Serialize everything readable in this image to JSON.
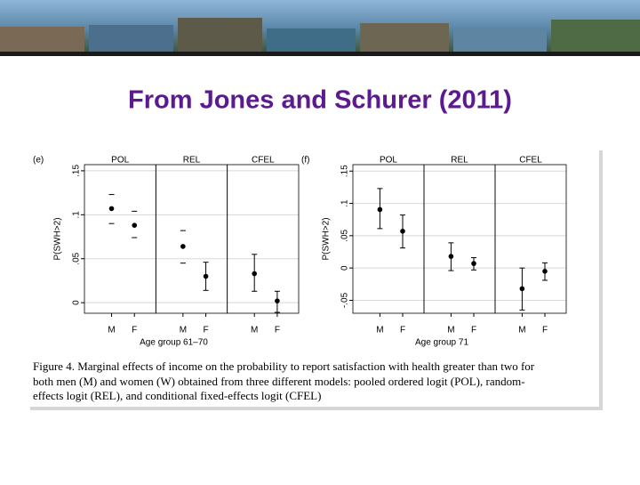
{
  "slide": {
    "title": "From Jones and Schurer (2011)",
    "caption": [
      "Figure 4. Marginal effects of income on the probability to report satisfaction with health greater than two for",
      "both men (M) and women (W) obtained from three different models: pooled ordered logit (POL), random-",
      "effects logit (REL), and conditional fixed-effects logit (CFEL)"
    ]
  },
  "chart_data": [
    {
      "type": "dot",
      "panel_label": "(e)",
      "y_label": "P(SWH>2)",
      "x_label": "Age group 61–70",
      "panels": [
        "POL",
        "REL",
        "CFEL"
      ],
      "categories": [
        "M",
        "F",
        "M",
        "F",
        "M",
        "F"
      ],
      "values": [
        0.107,
        0.088,
        0.064,
        0.03,
        0.033,
        0.002
      ],
      "lower": [
        0.09,
        0.074,
        0.045,
        0.014,
        0.013,
        -0.011
      ],
      "upper": [
        0.123,
        0.104,
        0.082,
        0.046,
        0.055,
        0.013
      ],
      "ci_style": [
        "dash",
        "dash",
        "dash",
        "bar",
        "bar",
        "bar"
      ],
      "color": "#000000",
      "ylim": [
        -0.012,
        0.157
      ],
      "yticks": [
        0,
        {
          "value": 0.05,
          "label": ".05"
        },
        {
          "value": 0.1,
          "label": ".1"
        },
        {
          "value": 0.15,
          "label": ".15"
        }
      ],
      "grid": true
    },
    {
      "type": "dot",
      "panel_label": "(f)",
      "y_label": "P(SWH>2)",
      "x_label": "Age group 71",
      "panels": [
        "POL",
        "REL",
        "CFEL"
      ],
      "categories": [
        "M",
        "F",
        "M",
        "F",
        "M",
        "F"
      ],
      "values": [
        0.0905,
        0.057,
        0.018,
        0.007,
        -0.032,
        -0.005
      ],
      "lower": [
        0.061,
        0.031,
        -0.004,
        -0.003,
        -0.065,
        -0.019
      ],
      "upper": [
        0.123,
        0.082,
        0.039,
        0.016,
        0.0,
        0.008
      ],
      "ci_style": [
        "bar",
        "bar",
        "bar",
        "bar",
        "bar",
        "bar"
      ],
      "color": "#000000",
      "ylim": [
        -0.07,
        0.16
      ],
      "yticks": [
        {
          "value": -0.05,
          "label": "-.05"
        },
        0,
        {
          "value": 0.05,
          "label": ".05"
        },
        {
          "value": 0.1,
          "label": ".1"
        },
        {
          "value": 0.15,
          "label": ".15"
        }
      ],
      "grid": true
    }
  ]
}
